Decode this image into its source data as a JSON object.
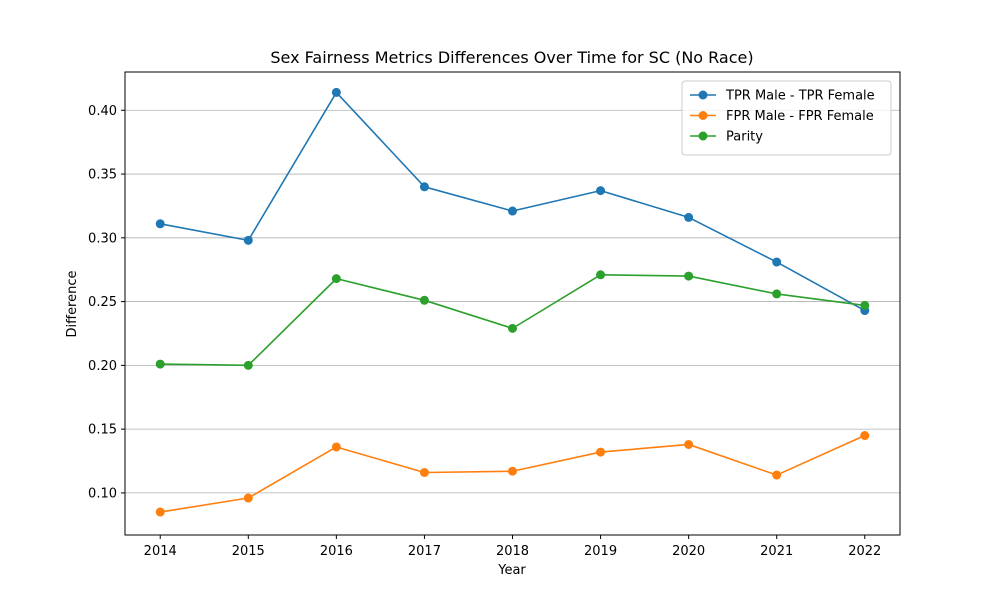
{
  "chart_data": {
    "type": "line",
    "title": "Sex Fairness Metrics Differences Over Time for SC (No Race)",
    "xlabel": "Year",
    "ylabel": "Difference",
    "x": [
      2014,
      2015,
      2016,
      2017,
      2018,
      2019,
      2020,
      2021,
      2022
    ],
    "x_tick_labels": [
      "2014",
      "2015",
      "2016",
      "2017",
      "2018",
      "2019",
      "2020",
      "2021",
      "2022"
    ],
    "y_ticks": [
      0.1,
      0.15,
      0.2,
      0.25,
      0.3,
      0.35,
      0.4
    ],
    "y_tick_labels": [
      "0.10",
      "0.15",
      "0.20",
      "0.25",
      "0.30",
      "0.35",
      "0.40"
    ],
    "ylim": [
      0.067,
      0.43
    ],
    "xlim": [
      2013.6,
      2022.4
    ],
    "grid": "y-axis only",
    "legend_position": "top-right",
    "series": [
      {
        "name": "TPR Male - TPR Female",
        "color": "#1f77b4",
        "values": [
          0.311,
          0.298,
          0.414,
          0.34,
          0.321,
          0.337,
          0.316,
          0.281,
          0.243
        ]
      },
      {
        "name": "FPR Male - FPR Female",
        "color": "#ff7f0e",
        "values": [
          0.085,
          0.096,
          0.136,
          0.116,
          0.117,
          0.132,
          0.138,
          0.114,
          0.145
        ]
      },
      {
        "name": "Parity",
        "color": "#2ca02c",
        "values": [
          0.201,
          0.2,
          0.268,
          0.251,
          0.229,
          0.271,
          0.27,
          0.256,
          0.247
        ]
      }
    ]
  }
}
